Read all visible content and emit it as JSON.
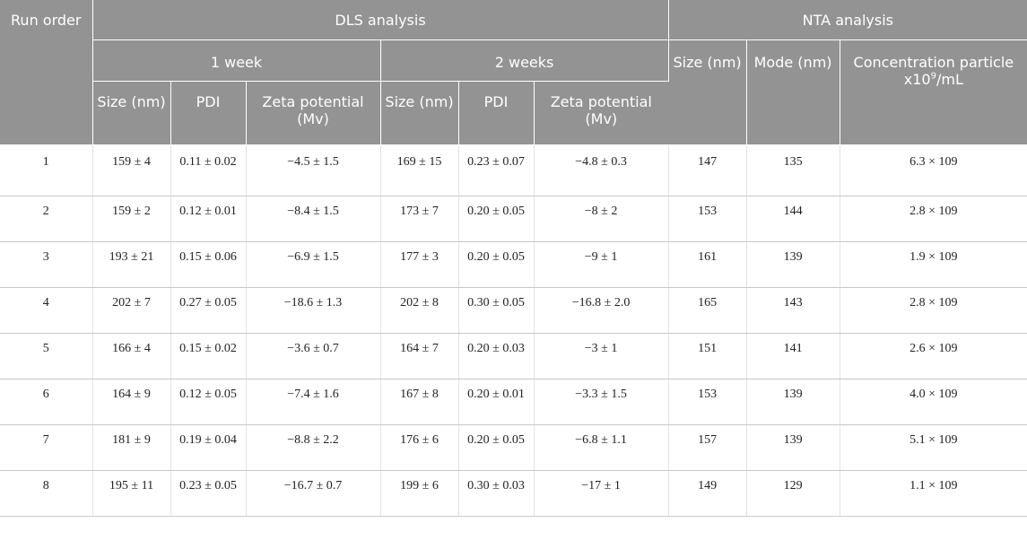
{
  "header": {
    "run_order": "Run order",
    "dls": "DLS analysis",
    "nta": "NTA analysis",
    "week1": "1 week",
    "week2": "2 weeks",
    "nta_size": "Size (nm)",
    "nta_mode": "Mode (nm)",
    "nta_conc_pre": "Concentration particle x10",
    "nta_conc_sup": "9",
    "nta_conc_post": "/mL",
    "size": "Size (nm)",
    "pdi": "PDI",
    "zeta": "Zeta potential (Mv)"
  },
  "rows": [
    [
      "1",
      "159 ± 4",
      "0.11 ± 0.02",
      "−4.5 ± 1.5",
      "169 ± 15",
      "0.23 ± 0.07",
      "−4.8 ± 0.3",
      "147",
      "135",
      "6.3 × 109"
    ],
    [
      "2",
      "159 ± 2",
      "0.12 ± 0.01",
      "−8.4 ± 1.5",
      "173 ± 7",
      "0.20 ± 0.05",
      "−8 ± 2",
      "153",
      "144",
      "2.8 × 109"
    ],
    [
      "3",
      "193 ± 21",
      "0.15 ± 0.06",
      "−6.9 ± 1.5",
      "177 ± 3",
      "0.20 ± 0.05",
      "−9 ± 1",
      "161",
      "139",
      "1.9 × 109"
    ],
    [
      "4",
      "202 ± 7",
      "0.27 ± 0.05",
      "−18.6 ± 1.3",
      "202 ± 8",
      "0.30 ± 0.05",
      "−16.8 ± 2.0",
      "165",
      "143",
      "2.8 × 109"
    ],
    [
      "5",
      "166 ± 4",
      "0.15 ± 0.02",
      "−3.6 ± 0.7",
      "164 ± 7",
      "0.20 ± 0.03",
      "−3 ± 1",
      "151",
      "141",
      "2.6 × 109"
    ],
    [
      "6",
      "164 ± 9",
      "0.12 ± 0.05",
      "−7.4 ± 1.6",
      "167 ± 8",
      "0.20 ± 0.01",
      "−3.3 ± 1.5",
      "153",
      "139",
      "4.0 × 109"
    ],
    [
      "7",
      "181 ± 9",
      "0.19 ± 0.04",
      "−8.8 ± 2.2",
      "176 ± 6",
      "0.20 ± 0.05",
      "−6.8 ± 1.1",
      "157",
      "139",
      "5.1 × 109"
    ],
    [
      "8",
      "195 ± 11",
      "0.23 ± 0.05",
      "−16.7 ± 0.7",
      "199 ± 6",
      "0.30 ± 0.03",
      "−17 ± 1",
      "149",
      "129",
      "1.1 × 109"
    ]
  ]
}
